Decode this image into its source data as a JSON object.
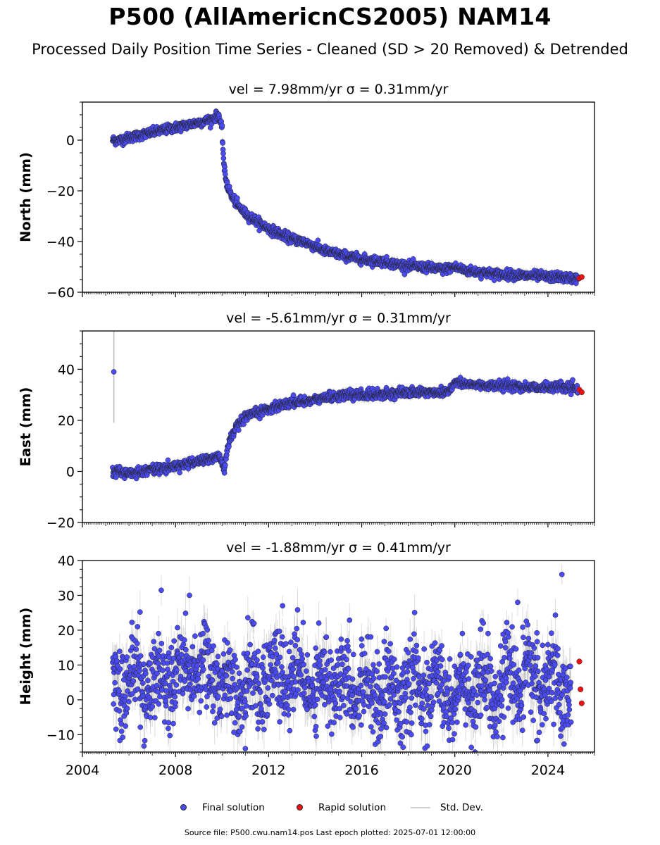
{
  "title": "P500 (AllAmericnCS2005) NAM14",
  "subtitle": "Processed Daily Position Time Series - Cleaned (SD > 20 Removed) & Detrended",
  "legend": {
    "final": "Final solution",
    "rapid": "Rapid solution",
    "std": "Std. Dev."
  },
  "footer": "Source file: P500.cwu.nam14.pos  Last epoch plotted: 2025-07-01 12:00:00",
  "colors": {
    "final": "#4b4bf5",
    "rapid": "#ee1111",
    "stddev": "#bdbdbd",
    "edge": "#222222"
  },
  "chart_data": [
    {
      "type": "scatter",
      "title": "vel = 7.98mm/yr   σ = 0.31mm/yr",
      "xlabel": "",
      "ylabel": "North (mm)",
      "xlim": [
        2004,
        2026
      ],
      "ylim": [
        -60,
        15
      ],
      "yticks": [
        0,
        -20,
        -40,
        -60
      ],
      "series": [
        {
          "name": "Final solution",
          "x": [
            2005.3,
            2005.6,
            2006.0,
            2006.5,
            2007.0,
            2007.5,
            2008.0,
            2008.5,
            2009.0,
            2009.5,
            2009.85,
            2010.0,
            2010.05,
            2010.1,
            2010.2,
            2010.4,
            2010.7,
            2011.0,
            2011.5,
            2012.0,
            2012.5,
            2013.0,
            2013.5,
            2014.0,
            2014.5,
            2015.0,
            2015.5,
            2016.0,
            2016.5,
            2017.0,
            2017.5,
            2018.0,
            2018.5,
            2019.0,
            2019.5,
            2020.0,
            2020.5,
            2021.0,
            2021.5,
            2022.0,
            2022.5,
            2023.0,
            2023.5,
            2024.0,
            2024.5,
            2025.0,
            2025.3
          ],
          "y": [
            0,
            0,
            1,
            2,
            3,
            4,
            5,
            6,
            7,
            8,
            10,
            4,
            -5,
            -12,
            -17,
            -22,
            -26,
            -29,
            -32,
            -35,
            -37,
            -39,
            -40,
            -42,
            -44,
            -45,
            -46,
            -47,
            -47.5,
            -48,
            -49,
            -49.5,
            -50,
            -50.5,
            -51,
            -50,
            -51.5,
            -52,
            -52.5,
            -53,
            -53,
            -53.5,
            -53.5,
            -54,
            -54,
            -54.5,
            -54.5
          ]
        },
        {
          "name": "Rapid solution",
          "x": [
            2025.35,
            2025.45
          ],
          "y": [
            -54.5,
            -54
          ]
        }
      ]
    },
    {
      "type": "scatter",
      "title": "vel = -5.61mm/yr   σ = 0.31mm/yr",
      "xlabel": "",
      "ylabel": "East (mm)",
      "xlim": [
        2004,
        2026
      ],
      "ylim": [
        -20,
        55
      ],
      "yticks": [
        40,
        20,
        0,
        -20
      ],
      "series": [
        {
          "name": "Final solution",
          "x": [
            2005.3,
            2005.6,
            2006.0,
            2006.5,
            2007.0,
            2007.5,
            2008.0,
            2008.5,
            2009.0,
            2009.5,
            2009.9,
            2010.1,
            2010.2,
            2010.4,
            2010.7,
            2011.0,
            2011.5,
            2012.0,
            2012.5,
            2013.0,
            2013.5,
            2014.0,
            2014.5,
            2015.0,
            2015.5,
            2016.0,
            2016.5,
            2017.0,
            2017.5,
            2018.0,
            2018.5,
            2019.0,
            2019.5,
            2019.8,
            2020.0,
            2020.5,
            2021.0,
            2021.5,
            2022.0,
            2022.5,
            2023.0,
            2023.5,
            2024.0,
            2024.5,
            2025.0,
            2025.3
          ],
          "y": [
            0,
            0,
            -1,
            0,
            1,
            1,
            2,
            3,
            4,
            5,
            6,
            0,
            8,
            14,
            18,
            21,
            23,
            24.5,
            26,
            27,
            27.5,
            28,
            29,
            29.5,
            30,
            30,
            30,
            30.5,
            30.5,
            31,
            31,
            31,
            31,
            32,
            35,
            34,
            34,
            33.5,
            33.5,
            33.5,
            33,
            33,
            33,
            33,
            32.5,
            32
          ],
          "outliers": [
            [
              2005.35,
              39
            ]
          ]
        },
        {
          "name": "Rapid solution",
          "x": [
            2025.35,
            2025.45
          ],
          "y": [
            32,
            31
          ]
        }
      ]
    },
    {
      "type": "scatter",
      "title": "vel = -1.88mm/yr   σ = 0.41mm/yr",
      "xlabel": "",
      "ylabel": "Height (mm)",
      "xlim": [
        2004,
        2026
      ],
      "ylim": [
        -15,
        40
      ],
      "yticks": [
        40,
        30,
        20,
        10,
        0,
        -10
      ],
      "xticks": [
        2004,
        2008,
        2012,
        2016,
        2020,
        2024
      ],
      "series": [
        {
          "name": "Final solution",
          "x": [
            2005.3,
            2006.0,
            2007.0,
            2008.0,
            2009.0,
            2010.0,
            2011.0,
            2012.0,
            2013.0,
            2014.0,
            2015.0,
            2016.0,
            2017.0,
            2018.0,
            2019.0,
            2020.0,
            2021.0,
            2022.0,
            2023.0,
            2024.0,
            2025.0
          ],
          "y": [
            5,
            6,
            5,
            8,
            10,
            5,
            4,
            7,
            6,
            5,
            6,
            4,
            3,
            3,
            3,
            2,
            2,
            5,
            6,
            4,
            4
          ],
          "scatter_sd_mm": 6,
          "extremes": [
            [
              2008.6,
              30
            ],
            [
              2012.6,
              27
            ],
            [
              2022.7,
              28
            ],
            [
              2024.6,
              36
            ],
            [
              2011.0,
              -14
            ]
          ]
        },
        {
          "name": "Rapid solution",
          "x": [
            2025.35,
            2025.4,
            2025.45
          ],
          "y": [
            11,
            3,
            -1
          ]
        }
      ]
    }
  ]
}
